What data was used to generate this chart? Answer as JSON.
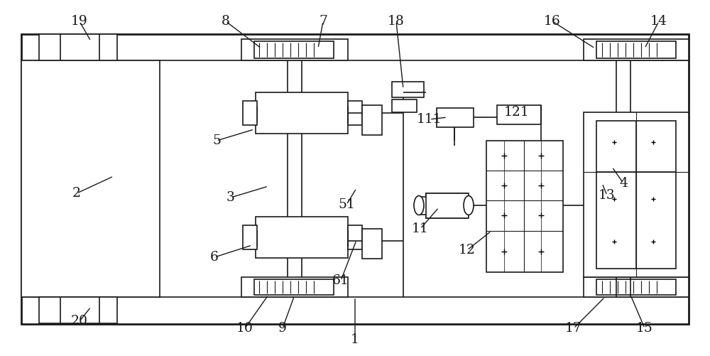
{
  "bg_color": "#ffffff",
  "line_color": "#1a1a1a",
  "lw": 1.2,
  "lw_thick": 2.0,
  "lw_thin": 0.8,
  "fig_width": 10.0,
  "fig_height": 5.01,
  "annotations": {
    "1": [
      500,
      478,
      500,
      418
    ],
    "2": [
      108,
      272,
      160,
      248
    ],
    "3": [
      325,
      278,
      378,
      262
    ],
    "4": [
      878,
      258,
      862,
      235
    ],
    "5": [
      305,
      198,
      358,
      182
    ],
    "6": [
      302,
      362,
      355,
      345
    ],
    "7": [
      455,
      30,
      448,
      68
    ],
    "8": [
      318,
      30,
      368,
      68
    ],
    "9": [
      398,
      462,
      415,
      415
    ],
    "10": [
      345,
      462,
      378,
      415
    ],
    "11": [
      592,
      322,
      618,
      292
    ],
    "12": [
      658,
      352,
      692,
      325
    ],
    "13": [
      855,
      275,
      848,
      258
    ],
    "14": [
      928,
      30,
      908,
      68
    ],
    "15": [
      908,
      462,
      888,
      415
    ],
    "16": [
      778,
      30,
      838,
      68
    ],
    "17": [
      808,
      462,
      852,
      418
    ],
    "18": [
      558,
      30,
      568,
      125
    ],
    "19": [
      112,
      30,
      128,
      58
    ],
    "20": [
      112,
      452,
      128,
      432
    ],
    "111": [
      605,
      168,
      630,
      165
    ],
    "121": [
      728,
      158,
      728,
      155
    ],
    "51": [
      488,
      288,
      502,
      265
    ],
    "61": [
      480,
      395,
      502,
      338
    ]
  },
  "label_fontsize": 13.5
}
